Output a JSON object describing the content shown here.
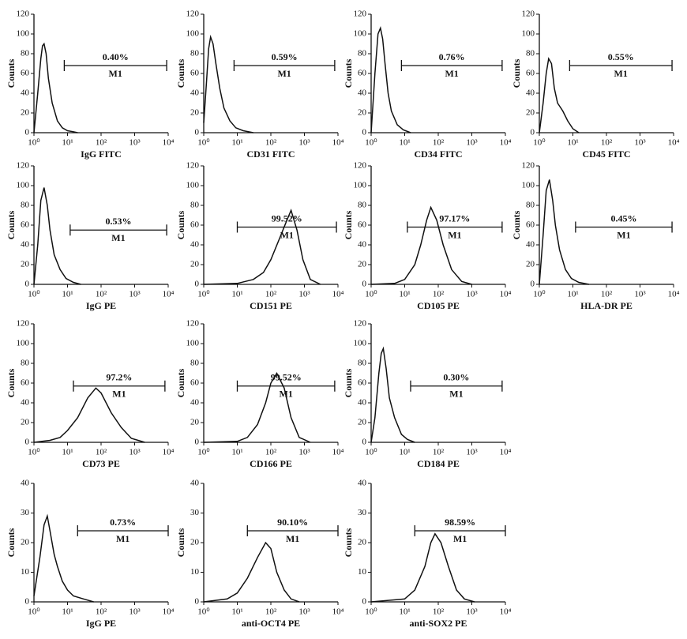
{
  "chart_data": [
    {
      "type": "line",
      "x_label": "IgG FITC",
      "y_label": "Counts",
      "log_x": true,
      "xlim": [
        1,
        10000
      ],
      "ylim": [
        0,
        120
      ],
      "xticks": [
        {
          "value": 1,
          "label": "10⁰"
        },
        {
          "value": 10,
          "label": "10¹"
        },
        {
          "value": 100,
          "label": "10²"
        },
        {
          "value": 1000,
          "label": "10³"
        },
        {
          "value": 10000,
          "label": "10⁴"
        }
      ],
      "yticks": [
        0,
        20,
        40,
        60,
        80,
        100,
        120
      ],
      "x": [
        1,
        1.3,
        1.6,
        1.8,
        2,
        2.3,
        2.7,
        3.5,
        5,
        7,
        10,
        15,
        20
      ],
      "series": [
        {
          "color": "#111111",
          "values": [
            0,
            40,
            75,
            88,
            90,
            80,
            55,
            30,
            12,
            5,
            2,
            1,
            0
          ]
        }
      ],
      "gate": {
        "label": "M1",
        "percent": "0.40%",
        "range": [
          8,
          9000
        ],
        "y": 68
      }
    },
    {
      "type": "line",
      "x_label": "CD31 FITC",
      "y_label": "Counts",
      "log_x": true,
      "xlim": [
        1,
        10000
      ],
      "ylim": [
        0,
        120
      ],
      "xticks": [
        {
          "value": 1,
          "label": "10⁰"
        },
        {
          "value": 10,
          "label": "10¹"
        },
        {
          "value": 100,
          "label": "10²"
        },
        {
          "value": 1000,
          "label": "10³"
        },
        {
          "value": 10000,
          "label": "10⁴"
        }
      ],
      "yticks": [
        0,
        20,
        40,
        60,
        80,
        100,
        120
      ],
      "x": [
        1,
        1.2,
        1.4,
        1.6,
        1.9,
        2.3,
        3,
        4,
        6,
        9,
        15,
        30
      ],
      "series": [
        {
          "color": "#111111",
          "values": [
            10,
            50,
            85,
            97,
            90,
            70,
            45,
            25,
            12,
            5,
            2,
            0
          ]
        }
      ],
      "gate": {
        "label": "M1",
        "percent": "0.59%",
        "range": [
          8,
          8000
        ],
        "y": 68
      }
    },
    {
      "type": "line",
      "x_label": "CD34 FITC",
      "y_label": "Counts",
      "log_x": true,
      "xlim": [
        1,
        10000
      ],
      "ylim": [
        0,
        120
      ],
      "xticks": [
        {
          "value": 1,
          "label": "10⁰"
        },
        {
          "value": 10,
          "label": "10¹"
        },
        {
          "value": 100,
          "label": "10²"
        },
        {
          "value": 1000,
          "label": "10³"
        },
        {
          "value": 10000,
          "label": "10⁴"
        }
      ],
      "yticks": [
        0,
        20,
        40,
        60,
        80,
        100,
        120
      ],
      "x": [
        1,
        1.3,
        1.6,
        1.9,
        2.2,
        2.6,
        3.2,
        4,
        6,
        9,
        15
      ],
      "series": [
        {
          "color": "#111111",
          "values": [
            0,
            60,
            100,
            106,
            95,
            70,
            40,
            22,
            8,
            3,
            0
          ]
        }
      ],
      "gate": {
        "label": "M1",
        "percent": "0.76%",
        "range": [
          8,
          8000
        ],
        "y": 68
      }
    },
    {
      "type": "line",
      "x_label": "CD45 FITC",
      "y_label": "Counts",
      "log_x": true,
      "xlim": [
        1,
        10000
      ],
      "ylim": [
        0,
        120
      ],
      "xticks": [
        {
          "value": 1,
          "label": "10⁰"
        },
        {
          "value": 10,
          "label": "10¹"
        },
        {
          "value": 100,
          "label": "10²"
        },
        {
          "value": 1000,
          "label": "10³"
        },
        {
          "value": 10000,
          "label": "10⁴"
        }
      ],
      "yticks": [
        0,
        20,
        40,
        60,
        80,
        100,
        120
      ],
      "x": [
        1,
        1.3,
        1.6,
        1.9,
        2.3,
        2.8,
        3.5,
        5,
        7,
        10,
        15
      ],
      "series": [
        {
          "color": "#111111",
          "values": [
            0,
            30,
            60,
            75,
            70,
            45,
            30,
            22,
            12,
            4,
            0
          ]
        }
      ],
      "gate": {
        "label": "M1",
        "percent": "0.55%",
        "range": [
          8,
          9000
        ],
        "y": 68
      }
    },
    {
      "type": "line",
      "x_label": "IgG PE",
      "y_label": "Counts",
      "log_x": true,
      "xlim": [
        1,
        10000
      ],
      "ylim": [
        0,
        120
      ],
      "xticks": [
        {
          "value": 1,
          "label": "10⁰"
        },
        {
          "value": 10,
          "label": "10¹"
        },
        {
          "value": 100,
          "label": "10²"
        },
        {
          "value": 1000,
          "label": "10³"
        },
        {
          "value": 10000,
          "label": "10⁴"
        }
      ],
      "yticks": [
        0,
        20,
        40,
        60,
        80,
        100,
        120
      ],
      "x": [
        1,
        1.3,
        1.6,
        2,
        2.5,
        3,
        4,
        6,
        9,
        15,
        25
      ],
      "series": [
        {
          "color": "#111111",
          "values": [
            0,
            40,
            85,
            98,
            80,
            55,
            30,
            15,
            6,
            2,
            0
          ]
        }
      ],
      "gate": {
        "label": "M1",
        "percent": "0.53%",
        "range": [
          12,
          9000
        ],
        "y": 55
      }
    },
    {
      "type": "line",
      "x_label": "CD151 PE",
      "y_label": "Counts",
      "log_x": true,
      "xlim": [
        1,
        10000
      ],
      "ylim": [
        0,
        120
      ],
      "xticks": [
        {
          "value": 1,
          "label": "10⁰"
        },
        {
          "value": 10,
          "label": "10¹"
        },
        {
          "value": 100,
          "label": "10²"
        },
        {
          "value": 1000,
          "label": "10³"
        },
        {
          "value": 10000,
          "label": "10⁴"
        }
      ],
      "yticks": [
        0,
        20,
        40,
        60,
        80,
        100,
        120
      ],
      "x": [
        1,
        10,
        30,
        60,
        100,
        200,
        300,
        400,
        600,
        900,
        1500,
        3000
      ],
      "series": [
        {
          "color": "#111111",
          "values": [
            0,
            1,
            5,
            12,
            25,
            50,
            65,
            75,
            55,
            25,
            5,
            0
          ]
        }
      ],
      "gate": {
        "label": "M1",
        "percent": "99.52%",
        "range": [
          10,
          9000
        ],
        "y": 58
      }
    },
    {
      "type": "line",
      "x_label": "CD105 PE",
      "y_label": "Counts",
      "log_x": true,
      "xlim": [
        1,
        10000
      ],
      "ylim": [
        0,
        120
      ],
      "xticks": [
        {
          "value": 1,
          "label": "10⁰"
        },
        {
          "value": 10,
          "label": "10¹"
        },
        {
          "value": 100,
          "label": "10²"
        },
        {
          "value": 1000,
          "label": "10³"
        },
        {
          "value": 10000,
          "label": "10⁴"
        }
      ],
      "yticks": [
        0,
        20,
        40,
        60,
        80,
        100,
        120
      ],
      "x": [
        1,
        5,
        10,
        20,
        30,
        45,
        60,
        90,
        140,
        250,
        500,
        1000
      ],
      "series": [
        {
          "color": "#111111",
          "values": [
            0,
            1,
            5,
            20,
            40,
            65,
            78,
            65,
            40,
            15,
            3,
            0
          ]
        }
      ],
      "gate": {
        "label": "M1",
        "percent": "97.17%",
        "range": [
          12,
          8000
        ],
        "y": 58
      }
    },
    {
      "type": "line",
      "x_label": "HLA-DR PE",
      "y_label": "Counts",
      "log_x": true,
      "xlim": [
        1,
        10000
      ],
      "ylim": [
        0,
        120
      ],
      "xticks": [
        {
          "value": 1,
          "label": "10⁰"
        },
        {
          "value": 10,
          "label": "10¹"
        },
        {
          "value": 100,
          "label": "10²"
        },
        {
          "value": 1000,
          "label": "10³"
        },
        {
          "value": 10000,
          "label": "10⁴"
        }
      ],
      "yticks": [
        0,
        20,
        40,
        60,
        80,
        100,
        120
      ],
      "x": [
        1,
        1.3,
        1.6,
        2,
        2.5,
        3,
        4,
        6,
        9,
        15,
        30
      ],
      "series": [
        {
          "color": "#111111",
          "values": [
            0,
            50,
            95,
            106,
            85,
            60,
            35,
            15,
            6,
            2,
            0
          ]
        }
      ],
      "gate": {
        "label": "M1",
        "percent": "0.45%",
        "range": [
          12,
          9000
        ],
        "y": 58
      }
    },
    {
      "type": "line",
      "x_label": "CD73 PE",
      "y_label": "Counts",
      "log_x": true,
      "xlim": [
        1,
        10000
      ],
      "ylim": [
        0,
        120
      ],
      "xticks": [
        {
          "value": 1,
          "label": "10⁰"
        },
        {
          "value": 10,
          "label": "10¹"
        },
        {
          "value": 100,
          "label": "10²"
        },
        {
          "value": 1000,
          "label": "10³"
        },
        {
          "value": 10000,
          "label": "10⁴"
        }
      ],
      "yticks": [
        0,
        20,
        40,
        60,
        80,
        100,
        120
      ],
      "x": [
        1,
        3,
        6,
        10,
        20,
        40,
        70,
        100,
        200,
        400,
        800,
        2000
      ],
      "series": [
        {
          "color": "#111111",
          "values": [
            0,
            2,
            5,
            12,
            25,
            45,
            55,
            50,
            30,
            15,
            4,
            0
          ]
        }
      ],
      "gate": {
        "label": "M1",
        "percent": "97.2%",
        "range": [
          15,
          8000
        ],
        "y": 57
      }
    },
    {
      "type": "line",
      "x_label": "CD166 PE",
      "y_label": "Counts",
      "log_x": true,
      "xlim": [
        1,
        10000
      ],
      "ylim": [
        0,
        120
      ],
      "xticks": [
        {
          "value": 1,
          "label": "10⁰"
        },
        {
          "value": 10,
          "label": "10¹"
        },
        {
          "value": 100,
          "label": "10²"
        },
        {
          "value": 1000,
          "label": "10³"
        },
        {
          "value": 10000,
          "label": "10⁴"
        }
      ],
      "yticks": [
        0,
        20,
        40,
        60,
        80,
        100,
        120
      ],
      "x": [
        1,
        10,
        20,
        40,
        70,
        100,
        150,
        250,
        400,
        700,
        1500
      ],
      "series": [
        {
          "color": "#111111",
          "values": [
            0,
            1,
            5,
            18,
            40,
            60,
            70,
            55,
            25,
            5,
            0
          ]
        }
      ],
      "gate": {
        "label": "M1",
        "percent": "99.52%",
        "range": [
          10,
          8000
        ],
        "y": 57
      }
    },
    {
      "type": "line",
      "x_label": "CD184 PE",
      "y_label": "Counts",
      "log_x": true,
      "xlim": [
        1,
        10000
      ],
      "ylim": [
        0,
        120
      ],
      "xticks": [
        {
          "value": 1,
          "label": "10⁰"
        },
        {
          "value": 10,
          "label": "10¹"
        },
        {
          "value": 100,
          "label": "10²"
        },
        {
          "value": 1000,
          "label": "10³"
        },
        {
          "value": 10000,
          "label": "10⁴"
        }
      ],
      "yticks": [
        0,
        20,
        40,
        60,
        80,
        100,
        120
      ],
      "x": [
        1,
        1.3,
        1.7,
        2,
        2.3,
        2.8,
        3.5,
        5,
        8,
        12,
        20
      ],
      "series": [
        {
          "color": "#111111",
          "values": [
            0,
            25,
            70,
            90,
            95,
            75,
            45,
            25,
            8,
            3,
            0
          ]
        }
      ],
      "gate": {
        "label": "M1",
        "percent": "0.30%",
        "range": [
          15,
          8000
        ],
        "y": 57
      }
    },
    {
      "type": "line",
      "x_label": "IgG PE",
      "y_label": "Counts",
      "log_x": true,
      "xlim": [
        1,
        10000
      ],
      "ylim": [
        0,
        40
      ],
      "xticks": [
        {
          "value": 1,
          "label": "10⁰"
        },
        {
          "value": 10,
          "label": "10¹"
        },
        {
          "value": 100,
          "label": "10²"
        },
        {
          "value": 1000,
          "label": "10³"
        },
        {
          "value": 10000,
          "label": "10⁴"
        }
      ],
      "yticks": [
        0,
        10,
        20,
        30,
        40
      ],
      "x": [
        1,
        1.5,
        2,
        2.5,
        3,
        4,
        5,
        7,
        10,
        15,
        30,
        60
      ],
      "series": [
        {
          "color": "#111111",
          "values": [
            2,
            15,
            26,
            29,
            24,
            16,
            12,
            7,
            4,
            2,
            1,
            0
          ]
        }
      ],
      "gate": {
        "label": "M1",
        "percent": "0.73%",
        "range": [
          20,
          10000
        ],
        "y": 24
      }
    },
    {
      "type": "line",
      "x_label": "anti-OCT4 PE",
      "y_label": "Counts",
      "log_x": true,
      "xlim": [
        1,
        10000
      ],
      "ylim": [
        0,
        40
      ],
      "xticks": [
        {
          "value": 1,
          "label": "10⁰"
        },
        {
          "value": 10,
          "label": "10¹"
        },
        {
          "value": 100,
          "label": "10²"
        },
        {
          "value": 1000,
          "label": "10³"
        },
        {
          "value": 10000,
          "label": "10⁴"
        }
      ],
      "yticks": [
        0,
        10,
        20,
        30,
        40
      ],
      "x": [
        1,
        5,
        10,
        20,
        40,
        70,
        100,
        150,
        250,
        400,
        700
      ],
      "series": [
        {
          "color": "#111111",
          "values": [
            0,
            1,
            3,
            8,
            15,
            20,
            18,
            10,
            4,
            1,
            0
          ]
        }
      ],
      "gate": {
        "label": "M1",
        "percent": "90.10%",
        "range": [
          20,
          10000
        ],
        "y": 24
      }
    },
    {
      "type": "line",
      "x_label": "anti-SOX2 PE",
      "y_label": "Counts",
      "log_x": true,
      "xlim": [
        1,
        10000
      ],
      "ylim": [
        0,
        40
      ],
      "xticks": [
        {
          "value": 1,
          "label": "10⁰"
        },
        {
          "value": 10,
          "label": "10¹"
        },
        {
          "value": 100,
          "label": "10²"
        },
        {
          "value": 1000,
          "label": "10³"
        },
        {
          "value": 10000,
          "label": "10⁴"
        }
      ],
      "yticks": [
        0,
        10,
        20,
        30,
        40
      ],
      "x": [
        1,
        10,
        20,
        40,
        60,
        80,
        120,
        200,
        350,
        600,
        1200
      ],
      "series": [
        {
          "color": "#111111",
          "values": [
            0,
            1,
            4,
            12,
            20,
            23,
            20,
            12,
            4,
            1,
            0
          ]
        }
      ],
      "gate": {
        "label": "M1",
        "percent": "98.59%",
        "range": [
          20,
          10000
        ],
        "y": 24
      }
    }
  ]
}
